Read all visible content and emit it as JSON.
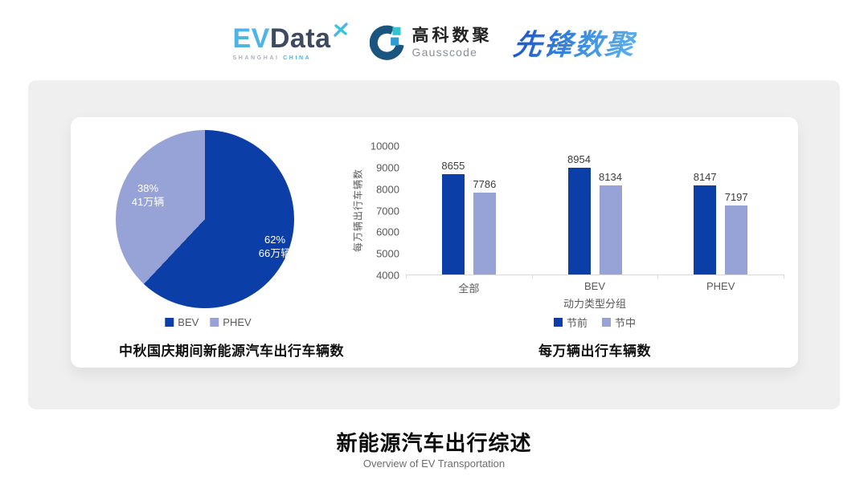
{
  "header": {
    "evdata": {
      "ev": "EV",
      "data": "Data",
      "sub_left": "SHANGHAI",
      "sub_right": "CHINA"
    },
    "gausscode": {
      "cn": "高科数聚",
      "en": "Gausscode"
    },
    "xianfeng": "先锋数聚"
  },
  "colors": {
    "primary_blue": "#0C3EA8",
    "secondary_purple": "#97A2D6",
    "panel_gray": "#EFEFEF",
    "axis_text_gray": "#595959"
  },
  "chart_data": [
    {
      "type": "pie",
      "title": "中秋国庆期间新能源汽车出行车辆数",
      "labels": [
        "BEV",
        "PHEV"
      ],
      "values": [
        62,
        38
      ],
      "amounts": [
        "66万辆",
        "41万辆"
      ],
      "value_labels": [
        [
          "62%",
          "66万辆"
        ],
        [
          "38%",
          "41万辆"
        ]
      ],
      "colors": [
        "#0C3EA8",
        "#97A2D6"
      ],
      "legend_position": "bottom",
      "start_angle_deg": 0,
      "direction": "clockwise"
    },
    {
      "type": "bar",
      "title": "每万辆出行车辆数",
      "categories": [
        "全部",
        "BEV",
        "PHEV"
      ],
      "series": [
        {
          "name": "节前",
          "values": [
            8655,
            8954,
            8147
          ]
        },
        {
          "name": "节中",
          "values": [
            7786,
            8134,
            7197
          ]
        }
      ],
      "xlabel": "动力类型分组",
      "ylabel": "每万辆出行车辆数",
      "ylim": [
        4000,
        10000
      ],
      "yticks": [
        10000,
        9000,
        8000,
        7000,
        6000,
        5000,
        4000
      ],
      "colors": [
        "#0C3EA8",
        "#97A2D6"
      ],
      "legend_position": "bottom",
      "grid": false
    }
  ],
  "footer": {
    "title": "新能源汽车出行综述",
    "subtitle": "Overview of EV Transportation"
  }
}
